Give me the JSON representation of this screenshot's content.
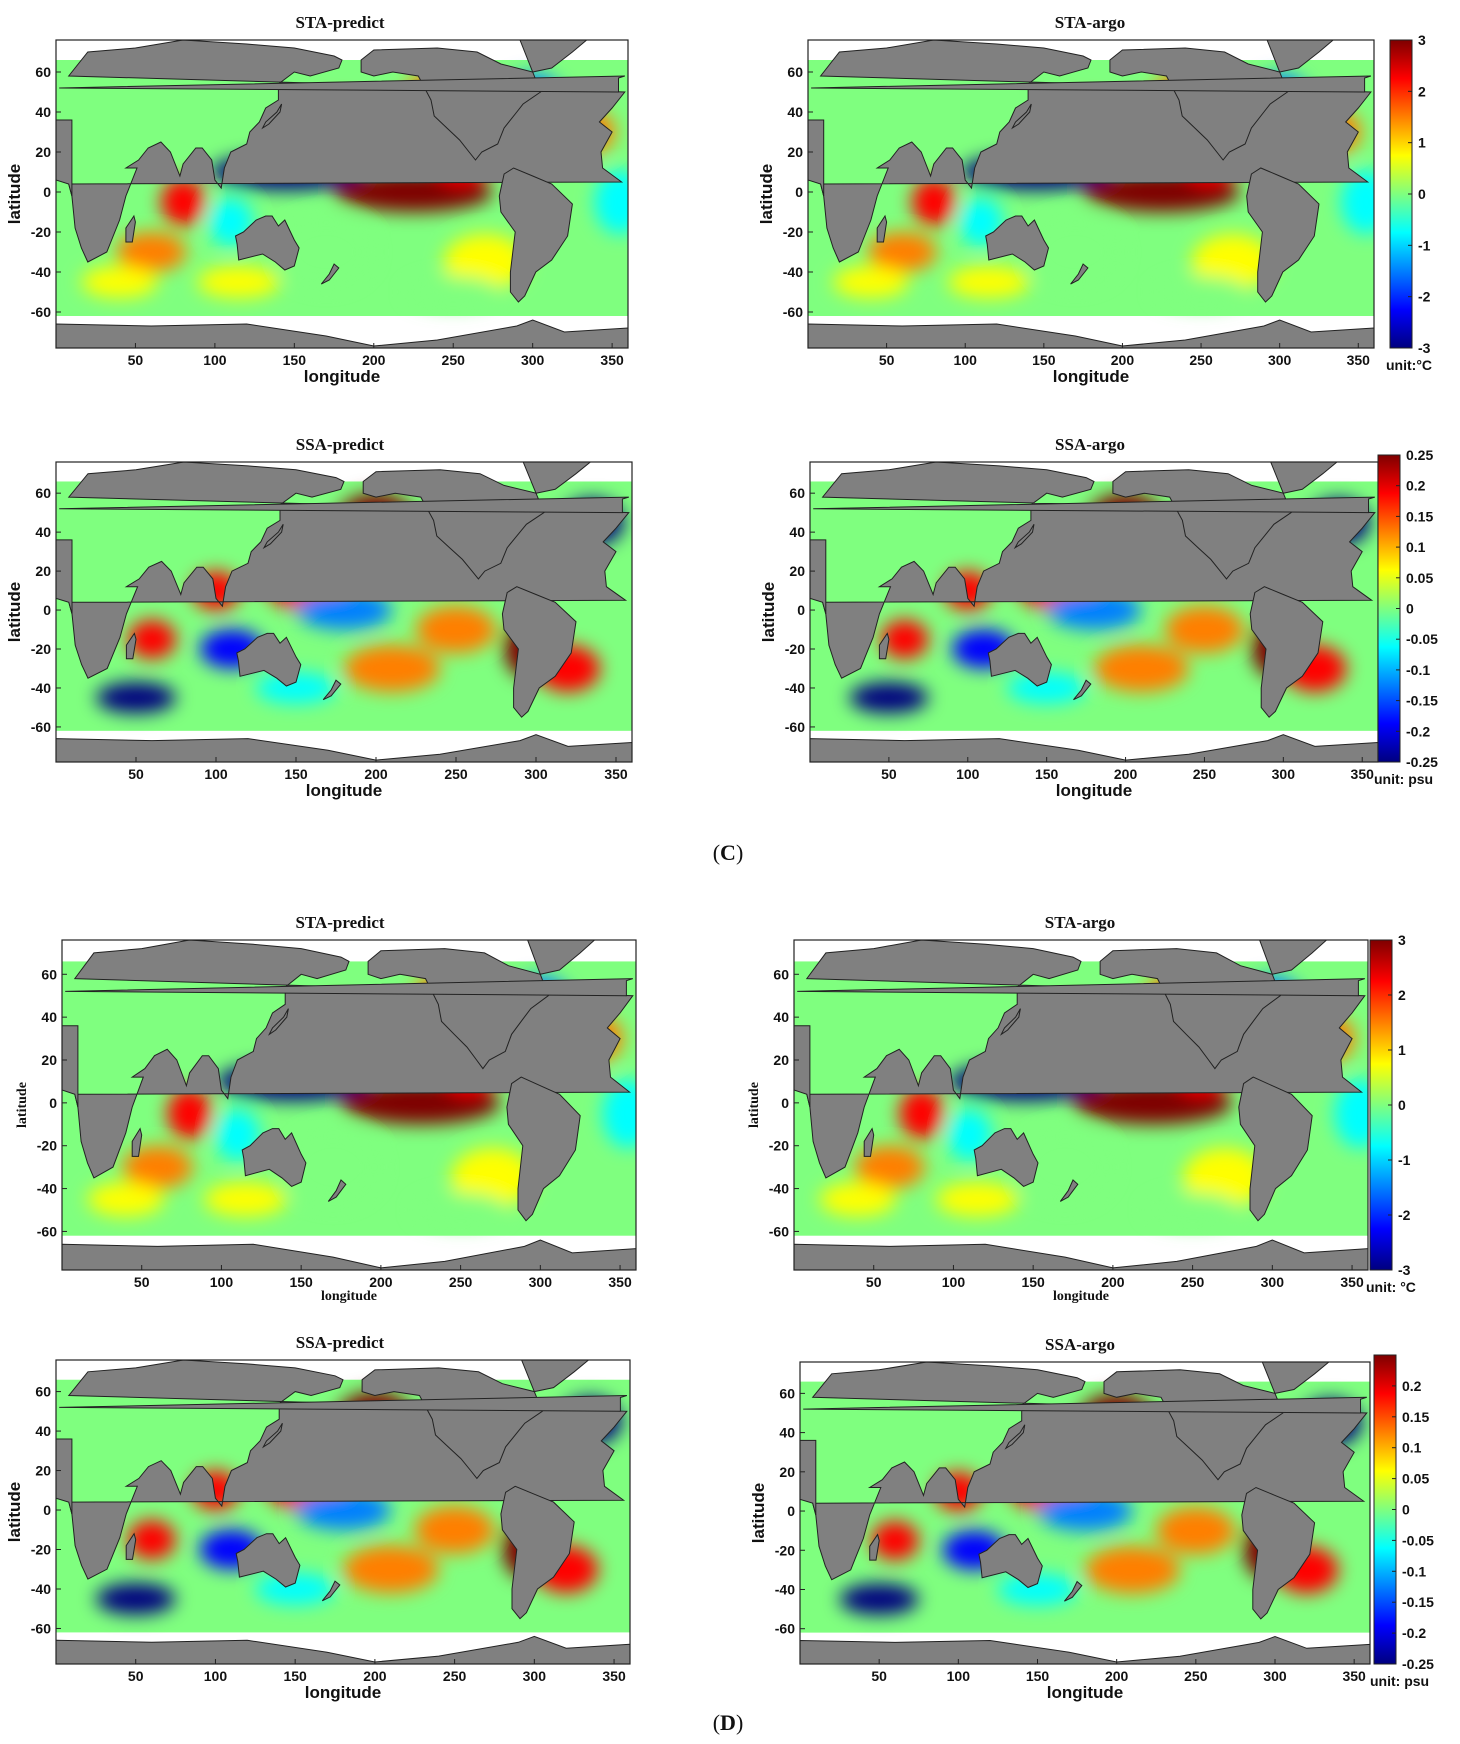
{
  "captions": [
    {
      "open": "(",
      "letter": "C",
      "close": ")"
    },
    {
      "open": "(",
      "letter": "D",
      "close": ")"
    }
  ],
  "chart_data": [
    {
      "type": "heatmap",
      "panel": "C",
      "title": "STA-predict",
      "xlabel": "longitude",
      "ylabel": "latitude",
      "xticks": [
        50,
        100,
        150,
        200,
        250,
        300,
        350
      ],
      "yticks": [
        60,
        40,
        20,
        0,
        -20,
        -40,
        -60
      ],
      "xlim": [
        0,
        360
      ],
      "ylim": [
        -78,
        76
      ],
      "colorbar": "none"
    },
    {
      "type": "heatmap",
      "panel": "C",
      "title": "STA-argo",
      "xlabel": "longitude",
      "ylabel": "latitude",
      "xticks": [
        50,
        100,
        150,
        200,
        250,
        300,
        350
      ],
      "yticks": [
        60,
        40,
        20,
        0,
        -20,
        -40,
        -60
      ],
      "xlim": [
        0,
        360
      ],
      "ylim": [
        -78,
        76
      ],
      "colorbar": {
        "ticks": [
          "3",
          "2",
          "1",
          "0",
          "-1",
          "-2",
          "-3"
        ],
        "range": [
          -3,
          3
        ],
        "unit": "unit:°C"
      }
    },
    {
      "type": "heatmap",
      "panel": "C",
      "title": "SSA-predict",
      "xlabel": "longitude",
      "ylabel": "latitude",
      "xticks": [
        50,
        100,
        150,
        200,
        250,
        300,
        350
      ],
      "yticks": [
        60,
        40,
        20,
        0,
        -20,
        -40,
        -60
      ],
      "xlim": [
        0,
        360
      ],
      "ylim": [
        -78,
        76
      ],
      "colorbar": "none"
    },
    {
      "type": "heatmap",
      "panel": "C",
      "title": "SSA-argo",
      "xlabel": "longitude",
      "ylabel": "latitude",
      "xticks": [
        50,
        100,
        150,
        200,
        250,
        300,
        350
      ],
      "yticks": [
        60,
        40,
        20,
        0,
        -20,
        -40,
        -60
      ],
      "xlim": [
        0,
        360
      ],
      "ylim": [
        -78,
        76
      ],
      "colorbar": {
        "ticks": [
          "0.25",
          "0.2",
          "0.15",
          "0.1",
          "0.05",
          "0",
          "-0.05",
          "-0.1",
          "-0.15",
          "-0.2",
          "-0.25"
        ],
        "range": [
          -0.25,
          0.25
        ],
        "unit": "unit: psu"
      }
    },
    {
      "type": "heatmap",
      "panel": "D",
      "title": "STA-predict",
      "xlabel": "longitude",
      "ylabel": "latitude",
      "xticks": [
        50,
        100,
        150,
        200,
        250,
        300,
        350
      ],
      "yticks": [
        60,
        40,
        20,
        0,
        -20,
        -40,
        -60
      ],
      "xlim": [
        0,
        360
      ],
      "ylim": [
        -78,
        76
      ],
      "colorbar": "none"
    },
    {
      "type": "heatmap",
      "panel": "D",
      "title": "STA-argo",
      "xlabel": "longitude",
      "ylabel": "latitude",
      "xticks": [
        50,
        100,
        150,
        200,
        250,
        300,
        350
      ],
      "yticks": [
        60,
        40,
        20,
        0,
        -20,
        -40,
        -60
      ],
      "xlim": [
        0,
        360
      ],
      "ylim": [
        -78,
        76
      ],
      "colorbar": {
        "ticks": [
          "3",
          "2",
          "1",
          "0",
          "-1",
          "-2",
          "-3"
        ],
        "range": [
          -3,
          3
        ],
        "unit": "unit: °C"
      }
    },
    {
      "type": "heatmap",
      "panel": "D",
      "title": "SSA-predict",
      "xlabel": "longitude",
      "ylabel": "latitude",
      "xticks": [
        50,
        100,
        150,
        200,
        250,
        300,
        350
      ],
      "yticks": [
        60,
        40,
        20,
        0,
        -20,
        -40,
        -60
      ],
      "xlim": [
        0,
        360
      ],
      "ylim": [
        -78,
        76
      ],
      "colorbar": "none"
    },
    {
      "type": "heatmap",
      "panel": "D",
      "title": "SSA-argo",
      "xlabel": "longitude",
      "ylabel": "latitude",
      "xticks": [
        50,
        100,
        150,
        200,
        250,
        300,
        350
      ],
      "yticks": [
        60,
        40,
        20,
        0,
        -20,
        -40,
        -60
      ],
      "xlim": [
        0,
        360
      ],
      "ylim": [
        -78,
        76
      ],
      "colorbar": {
        "ticks": [
          "0.2",
          "0.15",
          "0.1",
          "0.05",
          "0",
          "-0.05",
          "-0.1",
          "-0.15",
          "-0.2",
          "-0.25"
        ],
        "range": [
          -0.25,
          0.25
        ],
        "unit": "unit: psu"
      }
    }
  ],
  "colors": {
    "land": "#808080",
    "land_edge": "#222222",
    "ocean_none": "#ffffff",
    "jet": [
      "#00007f",
      "#0000ff",
      "#007fff",
      "#00ffff",
      "#7fff7f",
      "#ffff00",
      "#ff7f00",
      "#ff0000",
      "#7f0000"
    ]
  }
}
